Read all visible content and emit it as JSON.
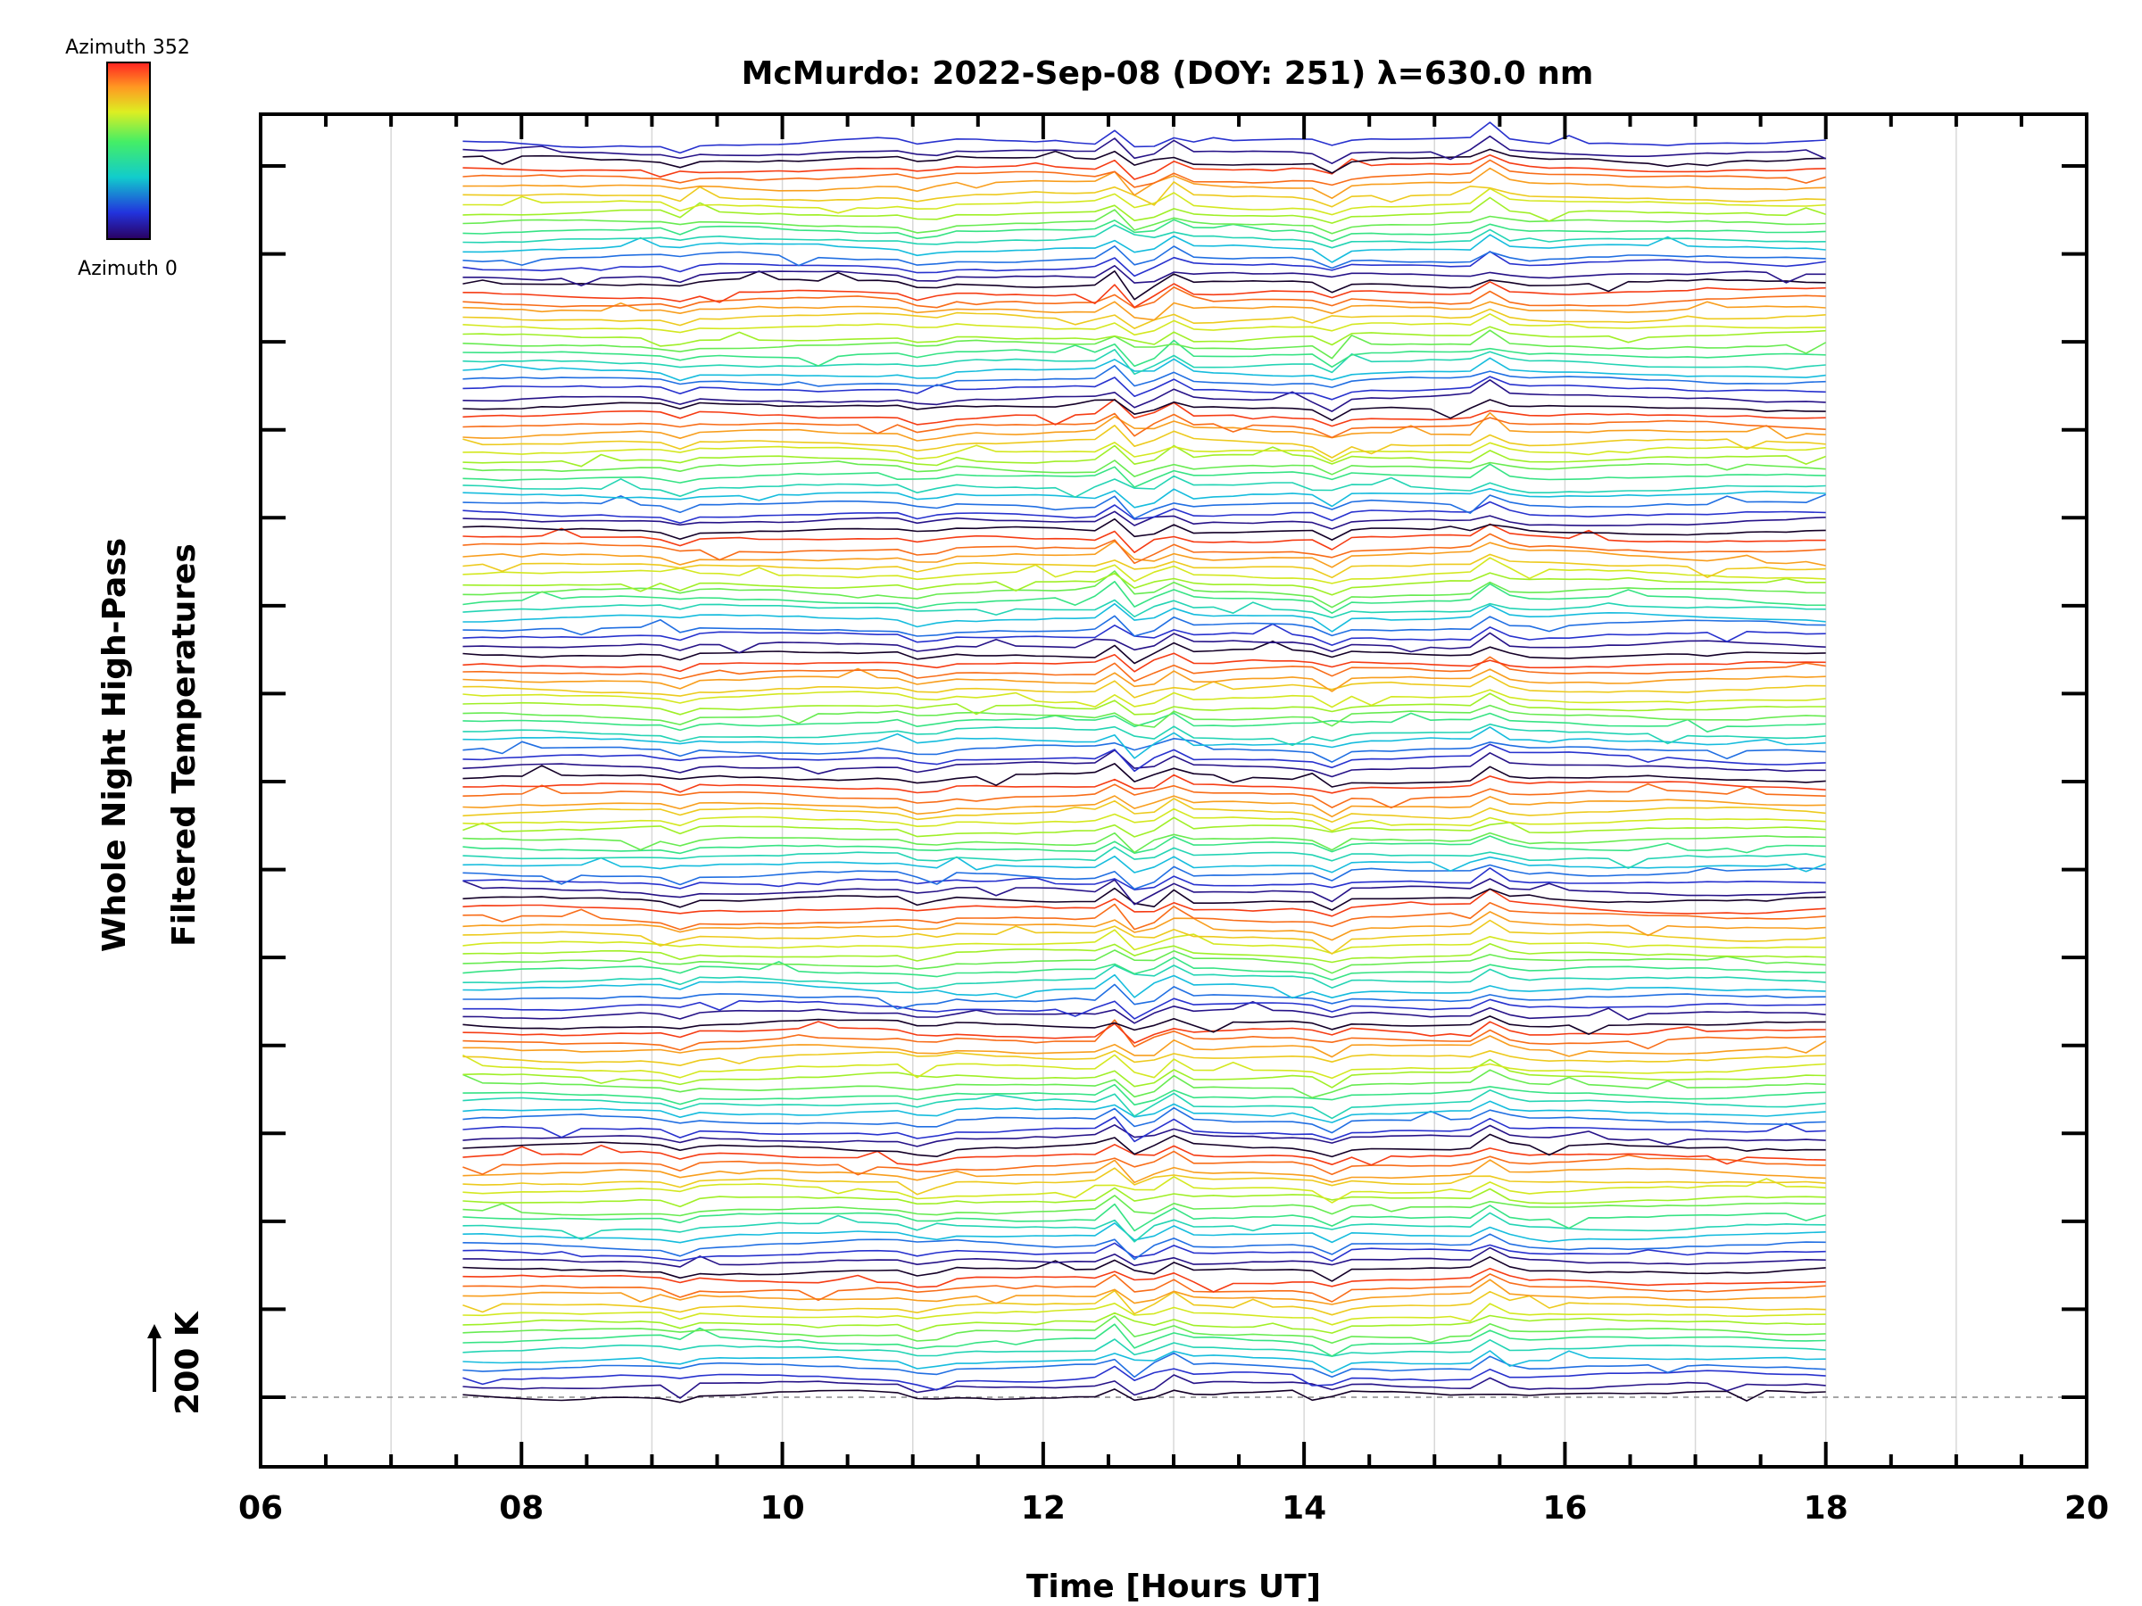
{
  "chart_data": {
    "type": "line",
    "title": "McMurdo: 2022-Sep-08 (DOY: 251) λ=630.0 nm",
    "xlabel": "Time [Hours UT]",
    "ylabel_line1": "Whole Night High-Pass",
    "ylabel_line2": "Filtered Temperatures",
    "scale_label": "200 K",
    "x_range": [
      6,
      20
    ],
    "x_tick_labels": [
      "06",
      "08",
      "10",
      "12",
      "14",
      "16",
      "18",
      "20"
    ],
    "x_tick_values": [
      6,
      8,
      10,
      12,
      14,
      16,
      18,
      20
    ],
    "data_time_range": [
      7.55,
      18.0
    ],
    "num_traces": 143,
    "traces_per_group": 14,
    "colorbar": {
      "top_label": "Azimuth 352",
      "bottom_label": "Azimuth 0",
      "azimuth_range": [
        0,
        352
      ],
      "colormap": "rainbow"
    },
    "grid": true,
    "baseline_style": "dashed"
  }
}
